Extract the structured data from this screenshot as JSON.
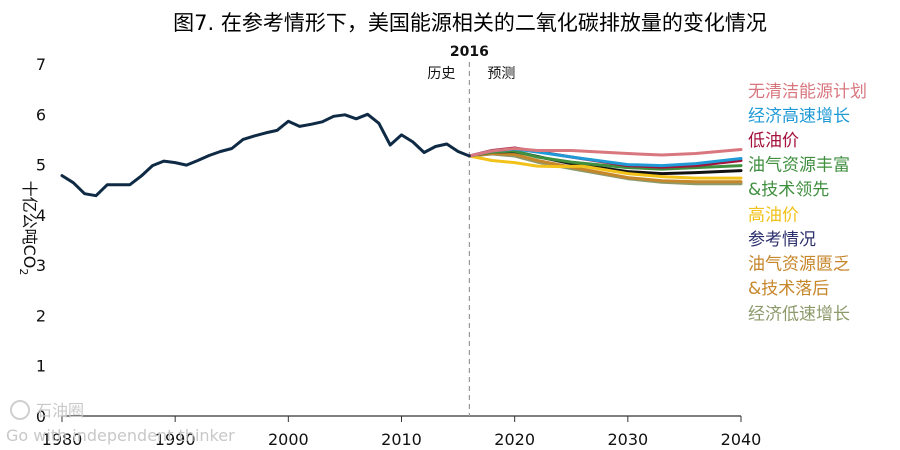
{
  "chart_data": {
    "type": "line",
    "title": "图7. 在参考情形下，美国能源相关的二氧化碳排放量的变化情况",
    "ylabel": "十亿公吨CO",
    "ylabel_sub": "2",
    "xlim": [
      1980,
      2040
    ],
    "ylim": [
      0,
      7
    ],
    "xticks": [
      "1980",
      "1990",
      "2000",
      "2010",
      "2020",
      "2030",
      "2040"
    ],
    "yticks": [
      "0",
      "1",
      "2",
      "3",
      "4",
      "5",
      "6",
      "7"
    ],
    "divider": {
      "x": 2016,
      "label": "2016",
      "left_label": "历史",
      "right_label": "预测"
    },
    "history": {
      "color": "#0f2a44",
      "points": [
        [
          1980,
          4.78
        ],
        [
          1981,
          4.64
        ],
        [
          1982,
          4.42
        ],
        [
          1983,
          4.38
        ],
        [
          1984,
          4.6
        ],
        [
          1985,
          4.6
        ],
        [
          1986,
          4.6
        ],
        [
          1987,
          4.77
        ],
        [
          1988,
          4.98
        ],
        [
          1989,
          5.07
        ],
        [
          1990,
          5.04
        ],
        [
          1991,
          4.99
        ],
        [
          1992,
          5.08
        ],
        [
          1993,
          5.18
        ],
        [
          1994,
          5.26
        ],
        [
          1995,
          5.32
        ],
        [
          1996,
          5.5
        ],
        [
          1997,
          5.57
        ],
        [
          1998,
          5.63
        ],
        [
          1999,
          5.68
        ],
        [
          2000,
          5.86
        ],
        [
          2001,
          5.76
        ],
        [
          2002,
          5.8
        ],
        [
          2003,
          5.85
        ],
        [
          2004,
          5.96
        ],
        [
          2005,
          5.99
        ],
        [
          2006,
          5.91
        ],
        [
          2007,
          6.0
        ],
        [
          2008,
          5.82
        ],
        [
          2009,
          5.39
        ],
        [
          2010,
          5.59
        ],
        [
          2011,
          5.45
        ],
        [
          2012,
          5.24
        ],
        [
          2013,
          5.36
        ],
        [
          2014,
          5.41
        ],
        [
          2015,
          5.26
        ],
        [
          2016,
          5.17
        ]
      ]
    },
    "series": [
      {
        "name": "无清洁能源计划",
        "color": "#d9777f",
        "points": [
          [
            2016,
            5.17
          ],
          [
            2018,
            5.27
          ],
          [
            2020,
            5.32
          ],
          [
            2022,
            5.28
          ],
          [
            2025,
            5.28
          ],
          [
            2030,
            5.22
          ],
          [
            2033,
            5.19
          ],
          [
            2036,
            5.22
          ],
          [
            2040,
            5.3
          ]
        ]
      },
      {
        "name": "经济高速增长",
        "color": "#1f9ad6",
        "points": [
          [
            2016,
            5.17
          ],
          [
            2018,
            5.27
          ],
          [
            2020,
            5.31
          ],
          [
            2022,
            5.25
          ],
          [
            2025,
            5.15
          ],
          [
            2030,
            5.0
          ],
          [
            2033,
            4.98
          ],
          [
            2036,
            5.02
          ],
          [
            2040,
            5.12
          ]
        ]
      },
      {
        "name": "低油价",
        "color": "#a3123a",
        "points": [
          [
            2016,
            5.17
          ],
          [
            2018,
            5.28
          ],
          [
            2020,
            5.33
          ],
          [
            2022,
            5.26
          ],
          [
            2025,
            5.15
          ],
          [
            2030,
            4.98
          ],
          [
            2033,
            4.95
          ],
          [
            2036,
            4.98
          ],
          [
            2040,
            5.08
          ]
        ]
      },
      {
        "name": "油气资源丰富&技术领先",
        "color": "#3f8f3f",
        "points": [
          [
            2016,
            5.17
          ],
          [
            2018,
            5.25
          ],
          [
            2020,
            5.27
          ],
          [
            2022,
            5.15
          ],
          [
            2025,
            5.05
          ],
          [
            2030,
            4.94
          ],
          [
            2033,
            4.91
          ],
          [
            2036,
            4.94
          ],
          [
            2040,
            4.98
          ]
        ]
      },
      {
        "name": "高油价",
        "color": "#f2c21a",
        "points": [
          [
            2016,
            5.17
          ],
          [
            2018,
            5.08
          ],
          [
            2020,
            5.04
          ],
          [
            2022,
            4.97
          ],
          [
            2024,
            4.96
          ],
          [
            2026,
            4.97
          ],
          [
            2030,
            4.82
          ],
          [
            2033,
            4.76
          ],
          [
            2036,
            4.73
          ],
          [
            2040,
            4.73
          ]
        ]
      },
      {
        "name": "参考情况",
        "color": "#111111",
        "points": [
          [
            2016,
            5.17
          ],
          [
            2018,
            5.25
          ],
          [
            2020,
            5.26
          ],
          [
            2022,
            5.16
          ],
          [
            2025,
            5.02
          ],
          [
            2030,
            4.86
          ],
          [
            2033,
            4.82
          ],
          [
            2036,
            4.84
          ],
          [
            2040,
            4.88
          ]
        ]
      },
      {
        "name": "油气资源匮乏&技术落后",
        "color": "#c6862a",
        "points": [
          [
            2016,
            5.17
          ],
          [
            2018,
            5.22
          ],
          [
            2020,
            5.2
          ],
          [
            2022,
            5.08
          ],
          [
            2025,
            4.95
          ],
          [
            2030,
            4.74
          ],
          [
            2033,
            4.68
          ],
          [
            2036,
            4.66
          ],
          [
            2040,
            4.66
          ]
        ]
      },
      {
        "name": "经济低速增长",
        "color": "#8c9a6b",
        "points": [
          [
            2016,
            5.17
          ],
          [
            2018,
            5.21
          ],
          [
            2020,
            5.17
          ],
          [
            2022,
            5.05
          ],
          [
            2025,
            4.92
          ],
          [
            2030,
            4.72
          ],
          [
            2033,
            4.65
          ],
          [
            2036,
            4.62
          ],
          [
            2040,
            4.62
          ]
        ]
      }
    ],
    "legend": [
      {
        "lines": [
          "无清洁能源计划"
        ],
        "color": "#d9777f"
      },
      {
        "lines": [
          "经济高速增长"
        ],
        "color": "#1f9ad6"
      },
      {
        "lines": [
          "低油价"
        ],
        "color": "#a3123a"
      },
      {
        "lines": [
          "油气资源丰富",
          "&技术领先"
        ],
        "color": "#3f8f3f"
      },
      {
        "lines": [
          "高油价"
        ],
        "color": "#f2c21a"
      },
      {
        "lines": [
          "参考情况"
        ],
        "color": "#2c2f6e"
      },
      {
        "lines": [
          "油气资源匮乏",
          "&技术落后"
        ],
        "color": "#c6862a"
      },
      {
        "lines": [
          "经济低速增长"
        ],
        "color": "#8c9a6b"
      }
    ],
    "grid": false,
    "legend_placement": "right"
  },
  "watermark": {
    "logo": "石油圈",
    "text": "Go with independent thinker"
  }
}
